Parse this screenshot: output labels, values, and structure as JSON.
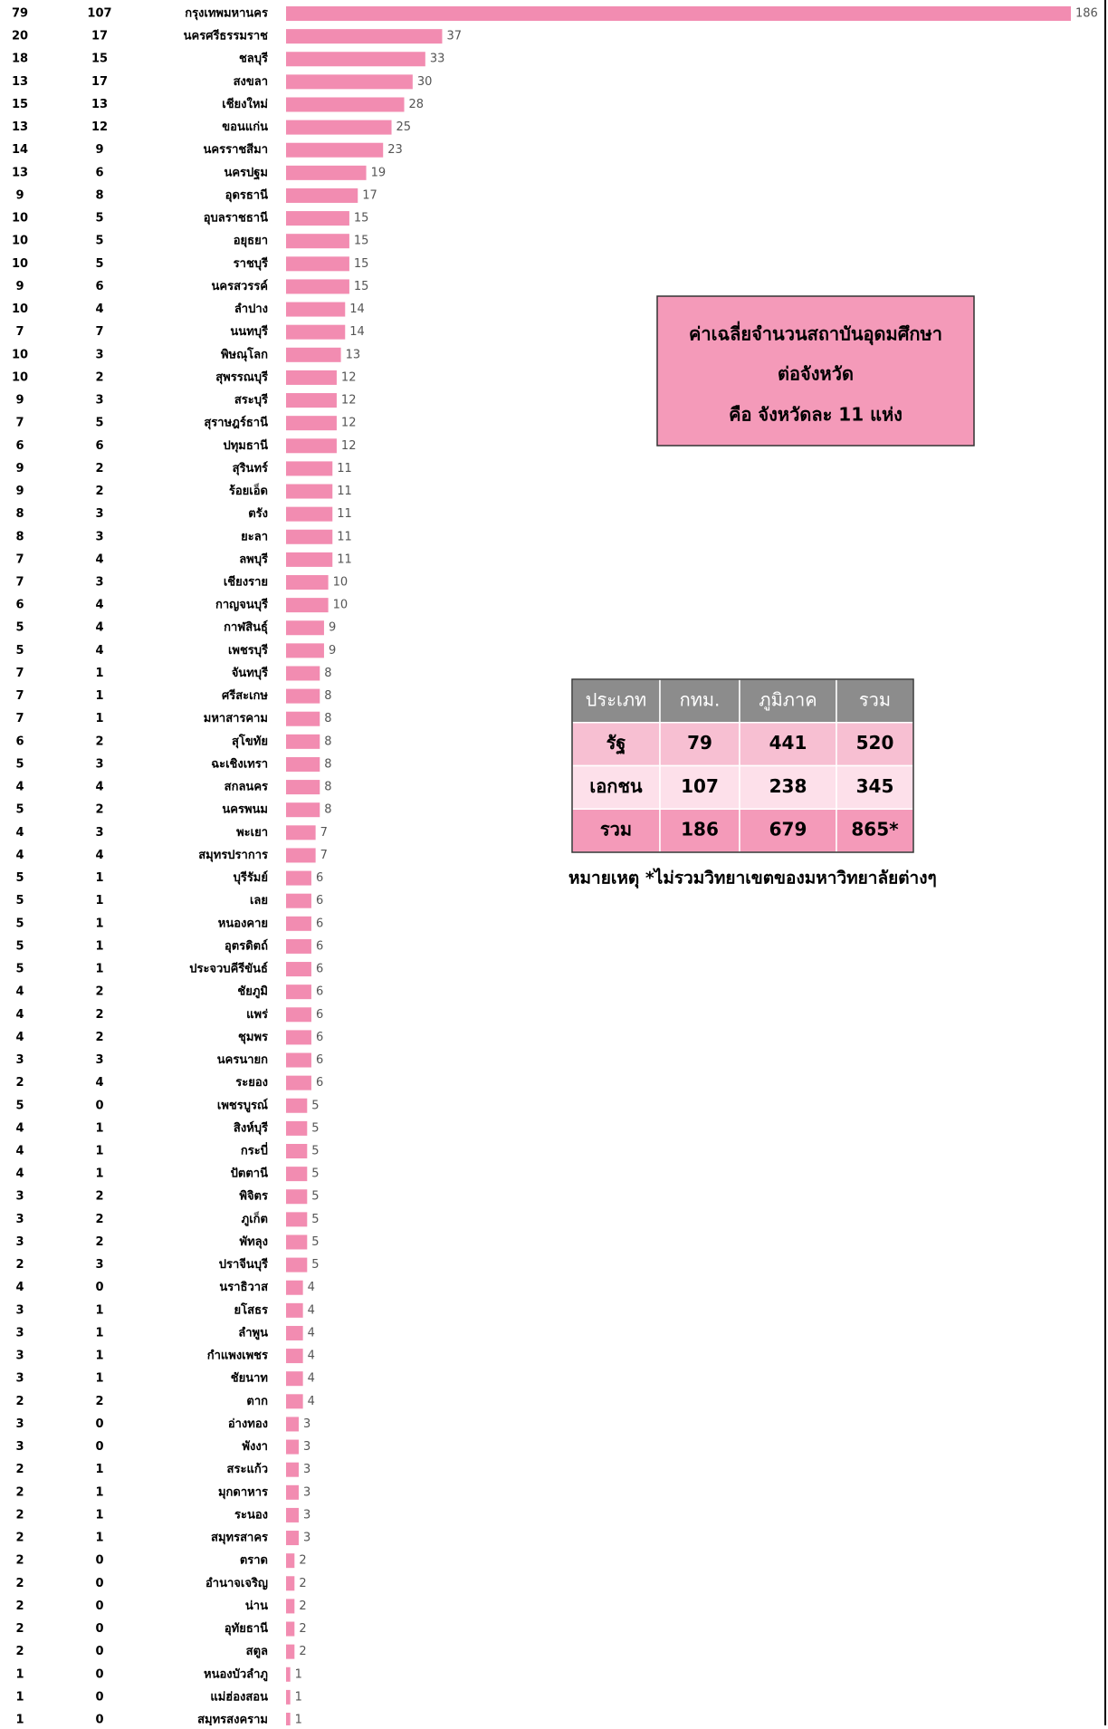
{
  "chart_data": {
    "type": "bar",
    "color": "#f28cb1",
    "categories": [
      "กรุงเทพมหานคร",
      "นครศรีธรรมราช",
      "ชลบุรี",
      "สงขลา",
      "เชียงใหม่",
      "ขอนแก่น",
      "นครราชสีมา",
      "นครปฐม",
      "อุดรธานี",
      "อุบลราชธานี",
      "อยุธยา",
      "ราชบุรี",
      "นครสวรรค์",
      "ลำปาง",
      "นนทบุรี",
      "พิษณุโลก",
      "สุพรรณบุรี",
      "สระบุรี",
      "สุราษฎร์ธานี",
      "ปทุมธานี",
      "สุรินทร์",
      "ร้อยเอ็ด",
      "ตรัง",
      "ยะลา",
      "ลพบุรี",
      "เชียงราย",
      "กาญจนบุรี",
      "กาฬสินธุ์",
      "เพชรบุรี",
      "จันทบุรี",
      "ศรีสะเกษ",
      "มหาสารคาม",
      "สุโขทัย",
      "ฉะเชิงเทรา",
      "สกลนคร",
      "นครพนม",
      "พะเยา",
      "สมุทรปราการ",
      "บุรีรัมย์",
      "เลย",
      "หนองคาย",
      "อุตรดิตถ์",
      "ประจวบคีรีขันธ์",
      "ชัยภูมิ",
      "แพร่",
      "ชุมพร",
      "นครนายก",
      "ระยอง",
      "เพชรบูรณ์",
      "สิงห์บุรี",
      "กระบี่",
      "ปัตตานี",
      "พิจิตร",
      "ภูเก็ต",
      "พัทลุง",
      "ปราจีนบุรี",
      "นราธิวาส",
      "ยโสธร",
      "ลำพูน",
      "กำแพงเพชร",
      "ชัยนาท",
      "ตาก",
      "อ่างทอง",
      "พังงา",
      "สระแก้ว",
      "มุกดาหาร",
      "ระนอง",
      "สมุทรสาคร",
      "ตราด",
      "อำนาจเจริญ",
      "น่าน",
      "อุทัยธานี",
      "สตูล",
      "หนองบัวลำภู",
      "แม่ฮ่องสอน",
      "สมุทรสงคราม"
    ],
    "values": [
      186,
      37,
      33,
      30,
      28,
      25,
      23,
      19,
      17,
      15,
      15,
      15,
      15,
      14,
      14,
      13,
      12,
      12,
      12,
      12,
      11,
      11,
      11,
      11,
      11,
      10,
      10,
      9,
      9,
      8,
      8,
      8,
      8,
      8,
      8,
      8,
      7,
      7,
      6,
      6,
      6,
      6,
      6,
      6,
      6,
      6,
      6,
      6,
      5,
      5,
      5,
      5,
      5,
      5,
      5,
      5,
      4,
      4,
      4,
      4,
      4,
      4,
      3,
      3,
      3,
      3,
      3,
      3,
      2,
      2,
      2,
      2,
      2,
      1,
      1,
      1
    ],
    "state": [
      79,
      20,
      18,
      13,
      15,
      13,
      14,
      13,
      9,
      10,
      10,
      10,
      9,
      10,
      7,
      10,
      10,
      9,
      7,
      6,
      9,
      9,
      8,
      8,
      7,
      7,
      6,
      5,
      5,
      7,
      7,
      7,
      6,
      5,
      4,
      5,
      4,
      4,
      5,
      5,
      5,
      5,
      5,
      4,
      4,
      4,
      3,
      2,
      5,
      4,
      4,
      4,
      3,
      3,
      3,
      2,
      4,
      3,
      3,
      3,
      3,
      2,
      3,
      3,
      2,
      2,
      2,
      2,
      2,
      2,
      2,
      2,
      2,
      1,
      1,
      1
    ],
    "private": [
      107,
      17,
      15,
      17,
      13,
      12,
      9,
      6,
      8,
      5,
      5,
      5,
      6,
      4,
      7,
      3,
      2,
      3,
      5,
      6,
      2,
      2,
      3,
      3,
      4,
      3,
      4,
      4,
      4,
      1,
      1,
      1,
      2,
      3,
      4,
      2,
      3,
      4,
      1,
      1,
      1,
      1,
      1,
      2,
      2,
      2,
      3,
      4,
      0,
      1,
      1,
      1,
      2,
      2,
      2,
      3,
      0,
      1,
      1,
      1,
      1,
      2,
      0,
      0,
      1,
      1,
      1,
      1,
      0,
      0,
      0,
      0,
      0,
      0,
      0,
      0
    ]
  },
  "info_box": {
    "lines": [
      "ค่าเฉลี่ยจำนวนสถาบันอุดมศึกษา",
      "ต่อจังหวัด",
      "คือ จังหวัดละ 11 แห่ง"
    ]
  },
  "table": {
    "header": [
      "ประเภท",
      "กทม.",
      "ภูมิภาค",
      "รวม"
    ],
    "rows": [
      [
        "รัฐ",
        "79",
        "441",
        "520"
      ],
      [
        "เอกชน",
        "107",
        "238",
        "345"
      ],
      [
        "รวม",
        "186",
        "679",
        "865*"
      ]
    ],
    "note": "หมายเหตุ *ไม่รวมวิทยาเขตของมหาวิทยาลัยต่างๆ"
  }
}
